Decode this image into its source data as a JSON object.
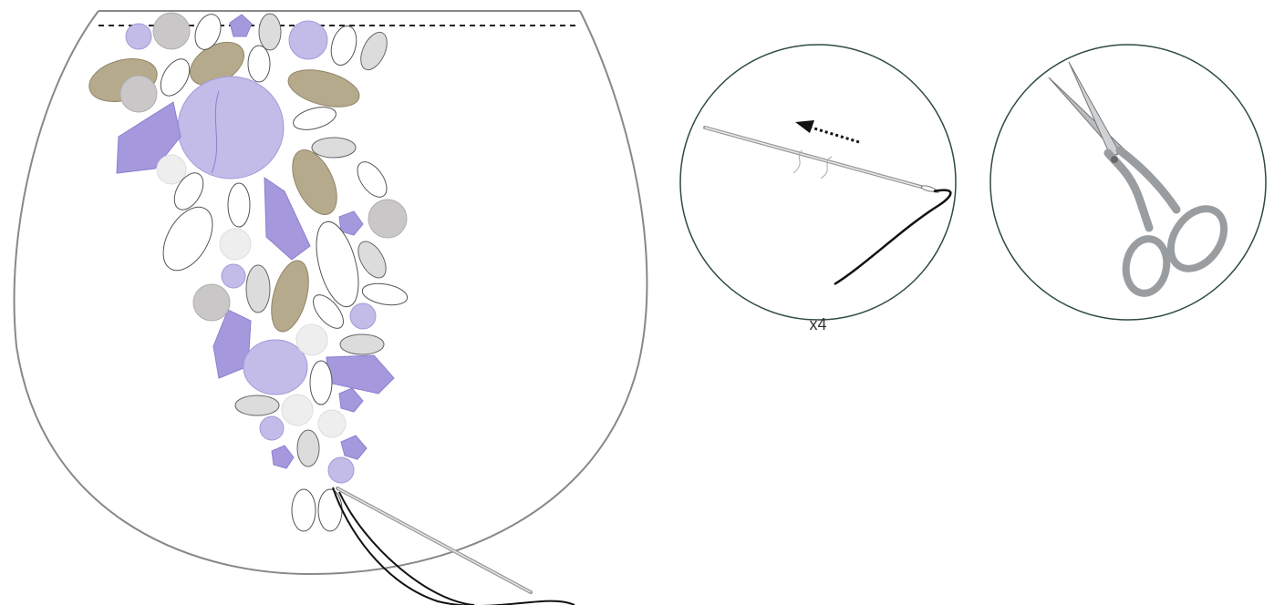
{
  "step_label": "x4"
}
